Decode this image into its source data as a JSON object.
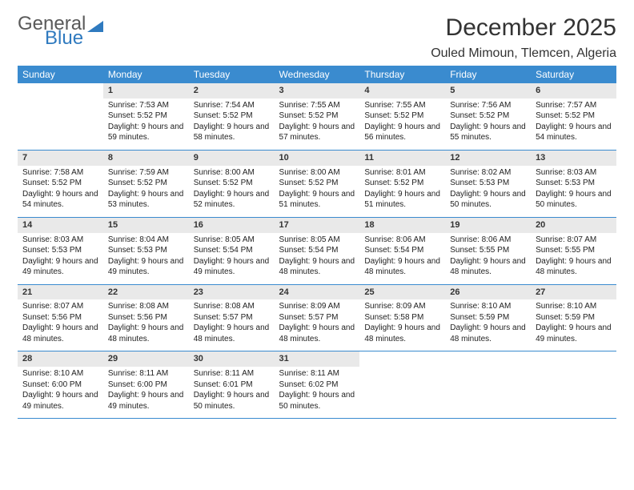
{
  "logo": {
    "text1": "General",
    "text2": "Blue"
  },
  "title": {
    "month": "December 2025",
    "location": "Ouled Mimoun, Tlemcen, Algeria"
  },
  "colors": {
    "header_bg": "#3a8bcf",
    "header_fg": "#ffffff",
    "daynum_bg": "#e9e9e9",
    "rule": "#3a8bcf",
    "logo_blue": "#2f7abf",
    "logo_gray": "#5a5a5a"
  },
  "day_headers": [
    "Sunday",
    "Monday",
    "Tuesday",
    "Wednesday",
    "Thursday",
    "Friday",
    "Saturday"
  ],
  "weeks": [
    {
      "days": [
        {
          "num": "",
          "sunrise": "",
          "sunset": "",
          "daylight": ""
        },
        {
          "num": "1",
          "sunrise": "Sunrise: 7:53 AM",
          "sunset": "Sunset: 5:52 PM",
          "daylight": "Daylight: 9 hours and 59 minutes."
        },
        {
          "num": "2",
          "sunrise": "Sunrise: 7:54 AM",
          "sunset": "Sunset: 5:52 PM",
          "daylight": "Daylight: 9 hours and 58 minutes."
        },
        {
          "num": "3",
          "sunrise": "Sunrise: 7:55 AM",
          "sunset": "Sunset: 5:52 PM",
          "daylight": "Daylight: 9 hours and 57 minutes."
        },
        {
          "num": "4",
          "sunrise": "Sunrise: 7:55 AM",
          "sunset": "Sunset: 5:52 PM",
          "daylight": "Daylight: 9 hours and 56 minutes."
        },
        {
          "num": "5",
          "sunrise": "Sunrise: 7:56 AM",
          "sunset": "Sunset: 5:52 PM",
          "daylight": "Daylight: 9 hours and 55 minutes."
        },
        {
          "num": "6",
          "sunrise": "Sunrise: 7:57 AM",
          "sunset": "Sunset: 5:52 PM",
          "daylight": "Daylight: 9 hours and 54 minutes."
        }
      ]
    },
    {
      "days": [
        {
          "num": "7",
          "sunrise": "Sunrise: 7:58 AM",
          "sunset": "Sunset: 5:52 PM",
          "daylight": "Daylight: 9 hours and 54 minutes."
        },
        {
          "num": "8",
          "sunrise": "Sunrise: 7:59 AM",
          "sunset": "Sunset: 5:52 PM",
          "daylight": "Daylight: 9 hours and 53 minutes."
        },
        {
          "num": "9",
          "sunrise": "Sunrise: 8:00 AM",
          "sunset": "Sunset: 5:52 PM",
          "daylight": "Daylight: 9 hours and 52 minutes."
        },
        {
          "num": "10",
          "sunrise": "Sunrise: 8:00 AM",
          "sunset": "Sunset: 5:52 PM",
          "daylight": "Daylight: 9 hours and 51 minutes."
        },
        {
          "num": "11",
          "sunrise": "Sunrise: 8:01 AM",
          "sunset": "Sunset: 5:52 PM",
          "daylight": "Daylight: 9 hours and 51 minutes."
        },
        {
          "num": "12",
          "sunrise": "Sunrise: 8:02 AM",
          "sunset": "Sunset: 5:53 PM",
          "daylight": "Daylight: 9 hours and 50 minutes."
        },
        {
          "num": "13",
          "sunrise": "Sunrise: 8:03 AM",
          "sunset": "Sunset: 5:53 PM",
          "daylight": "Daylight: 9 hours and 50 minutes."
        }
      ]
    },
    {
      "days": [
        {
          "num": "14",
          "sunrise": "Sunrise: 8:03 AM",
          "sunset": "Sunset: 5:53 PM",
          "daylight": "Daylight: 9 hours and 49 minutes."
        },
        {
          "num": "15",
          "sunrise": "Sunrise: 8:04 AM",
          "sunset": "Sunset: 5:53 PM",
          "daylight": "Daylight: 9 hours and 49 minutes."
        },
        {
          "num": "16",
          "sunrise": "Sunrise: 8:05 AM",
          "sunset": "Sunset: 5:54 PM",
          "daylight": "Daylight: 9 hours and 49 minutes."
        },
        {
          "num": "17",
          "sunrise": "Sunrise: 8:05 AM",
          "sunset": "Sunset: 5:54 PM",
          "daylight": "Daylight: 9 hours and 48 minutes."
        },
        {
          "num": "18",
          "sunrise": "Sunrise: 8:06 AM",
          "sunset": "Sunset: 5:54 PM",
          "daylight": "Daylight: 9 hours and 48 minutes."
        },
        {
          "num": "19",
          "sunrise": "Sunrise: 8:06 AM",
          "sunset": "Sunset: 5:55 PM",
          "daylight": "Daylight: 9 hours and 48 minutes."
        },
        {
          "num": "20",
          "sunrise": "Sunrise: 8:07 AM",
          "sunset": "Sunset: 5:55 PM",
          "daylight": "Daylight: 9 hours and 48 minutes."
        }
      ]
    },
    {
      "days": [
        {
          "num": "21",
          "sunrise": "Sunrise: 8:07 AM",
          "sunset": "Sunset: 5:56 PM",
          "daylight": "Daylight: 9 hours and 48 minutes."
        },
        {
          "num": "22",
          "sunrise": "Sunrise: 8:08 AM",
          "sunset": "Sunset: 5:56 PM",
          "daylight": "Daylight: 9 hours and 48 minutes."
        },
        {
          "num": "23",
          "sunrise": "Sunrise: 8:08 AM",
          "sunset": "Sunset: 5:57 PM",
          "daylight": "Daylight: 9 hours and 48 minutes."
        },
        {
          "num": "24",
          "sunrise": "Sunrise: 8:09 AM",
          "sunset": "Sunset: 5:57 PM",
          "daylight": "Daylight: 9 hours and 48 minutes."
        },
        {
          "num": "25",
          "sunrise": "Sunrise: 8:09 AM",
          "sunset": "Sunset: 5:58 PM",
          "daylight": "Daylight: 9 hours and 48 minutes."
        },
        {
          "num": "26",
          "sunrise": "Sunrise: 8:10 AM",
          "sunset": "Sunset: 5:59 PM",
          "daylight": "Daylight: 9 hours and 48 minutes."
        },
        {
          "num": "27",
          "sunrise": "Sunrise: 8:10 AM",
          "sunset": "Sunset: 5:59 PM",
          "daylight": "Daylight: 9 hours and 49 minutes."
        }
      ]
    },
    {
      "days": [
        {
          "num": "28",
          "sunrise": "Sunrise: 8:10 AM",
          "sunset": "Sunset: 6:00 PM",
          "daylight": "Daylight: 9 hours and 49 minutes."
        },
        {
          "num": "29",
          "sunrise": "Sunrise: 8:11 AM",
          "sunset": "Sunset: 6:00 PM",
          "daylight": "Daylight: 9 hours and 49 minutes."
        },
        {
          "num": "30",
          "sunrise": "Sunrise: 8:11 AM",
          "sunset": "Sunset: 6:01 PM",
          "daylight": "Daylight: 9 hours and 50 minutes."
        },
        {
          "num": "31",
          "sunrise": "Sunrise: 8:11 AM",
          "sunset": "Sunset: 6:02 PM",
          "daylight": "Daylight: 9 hours and 50 minutes."
        },
        {
          "num": "",
          "sunrise": "",
          "sunset": "",
          "daylight": ""
        },
        {
          "num": "",
          "sunrise": "",
          "sunset": "",
          "daylight": ""
        },
        {
          "num": "",
          "sunrise": "",
          "sunset": "",
          "daylight": ""
        }
      ]
    }
  ]
}
